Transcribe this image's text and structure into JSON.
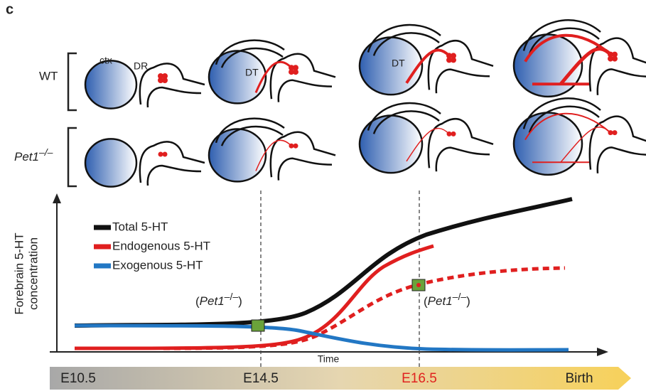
{
  "panel_label": "c",
  "rows": {
    "wt": "WT",
    "ko": {
      "name": "Pet1",
      "superscript": "–/–"
    }
  },
  "brain_labels": {
    "ctx": "ctx",
    "dr": "DR",
    "dt_1": "DT",
    "dt_2": "DT"
  },
  "y_axis_label": [
    "Forebrain 5-HT",
    "concentration"
  ],
  "x_axis_label": "Time",
  "legend": [
    "Total 5-HT",
    "Endogenous 5-HT",
    "Exogenous 5-HT"
  ],
  "annotations": [
    {
      "name": "Pet1",
      "superscript": "–/–"
    },
    {
      "name": "Pet1",
      "superscript": "–/–"
    }
  ],
  "timeline": [
    "E10.5",
    "E14.5",
    "E16.5",
    "Birth"
  ]
}
